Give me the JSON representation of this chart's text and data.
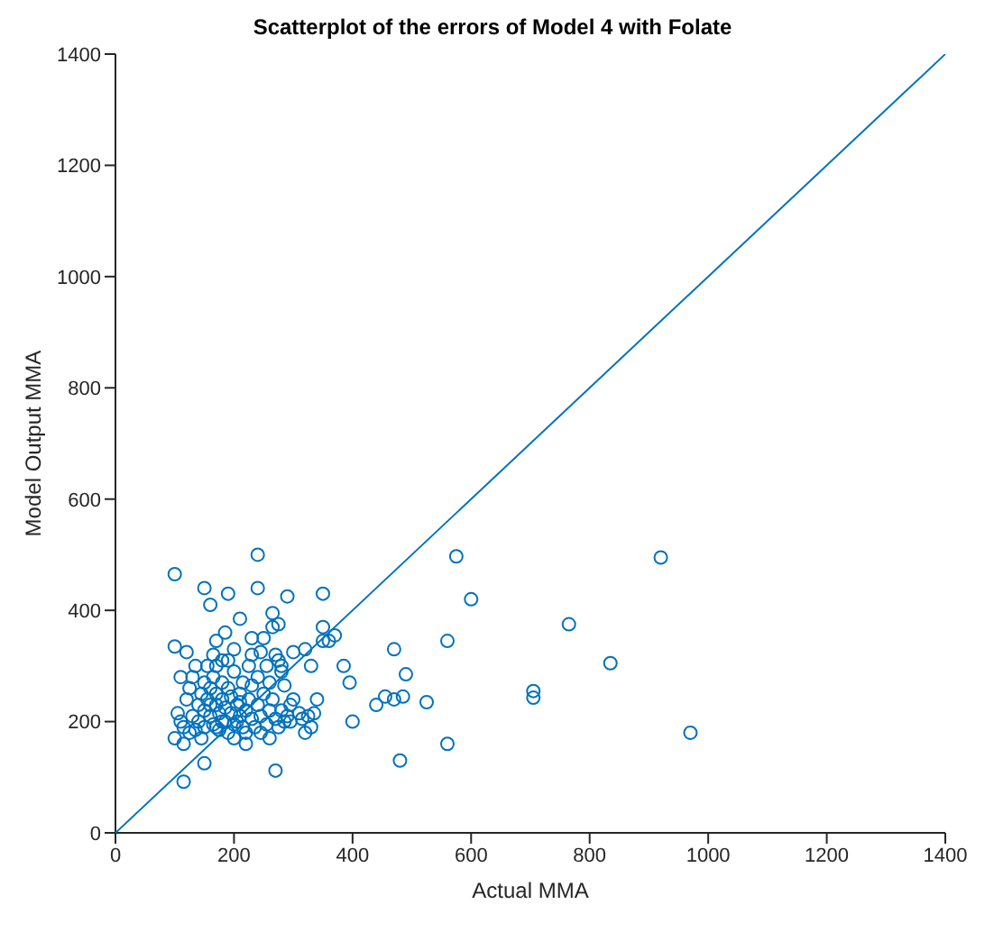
{
  "chart_data": {
    "type": "scatter",
    "title": "Scatterplot of the errors of Model 4 with Folate",
    "xlabel": "Actual MMA",
    "ylabel": "Model Output MMA",
    "xlim": [
      0,
      1400
    ],
    "ylim": [
      0,
      1400
    ],
    "xticks": [
      0,
      200,
      400,
      600,
      800,
      1000,
      1200,
      1400
    ],
    "yticks": [
      0,
      200,
      400,
      600,
      800,
      1000,
      1200,
      1400
    ],
    "grid": false,
    "legend": false,
    "marker": "circle",
    "series": [
      {
        "color": "#0072bd",
        "x": [
          100,
          240,
          575,
          920,
          600,
          765,
          835,
          560,
          705,
          705,
          470,
          490,
          525,
          560,
          480,
          970,
          270,
          115,
          150,
          385,
          395,
          400,
          440,
          455,
          470,
          485,
          350,
          290,
          265,
          240,
          150,
          160,
          190,
          100,
          120,
          185,
          230,
          265,
          350,
          320,
          330,
          370,
          350,
          360,
          275,
          210,
          105,
          110,
          115,
          120,
          125,
          130,
          130,
          135,
          140,
          140,
          145,
          150,
          150,
          150,
          155,
          155,
          160,
          160,
          165,
          165,
          165,
          170,
          170,
          170,
          175,
          175,
          180,
          180,
          180,
          185,
          185,
          190,
          190,
          195,
          195,
          200,
          200,
          205,
          205,
          210,
          210,
          215,
          215,
          220,
          220,
          225,
          225,
          230,
          230,
          235,
          240,
          240,
          245,
          245,
          250,
          255,
          255,
          260,
          260,
          265,
          270,
          270,
          275,
          280,
          280,
          285,
          290,
          295,
          300,
          300,
          310,
          315,
          320,
          325,
          330,
          335,
          340,
          100,
          110,
          115,
          125,
          135,
          145,
          160,
          170,
          180,
          190,
          200,
          210,
          220,
          230,
          245,
          260,
          275,
          285,
          295,
          170,
          200,
          250,
          280
        ],
        "values": [
          465,
          500,
          497,
          495,
          420,
          375,
          305,
          345,
          255,
          243,
          330,
          285,
          235,
          160,
          130,
          180,
          112,
          92,
          125,
          300,
          270,
          200,
          230,
          245,
          240,
          245,
          430,
          425,
          395,
          440,
          440,
          410,
          430,
          335,
          325,
          360,
          350,
          370,
          370,
          330,
          300,
          355,
          345,
          345,
          375,
          385,
          215,
          200,
          190,
          240,
          260,
          280,
          210,
          185,
          230,
          200,
          250,
          270,
          220,
          190,
          240,
          300,
          210,
          260,
          280,
          195,
          320,
          230,
          250,
          300,
          215,
          185,
          270,
          240,
          310,
          200,
          225,
          260,
          180,
          215,
          245,
          290,
          170,
          230,
          200,
          250,
          210,
          190,
          270,
          220,
          180,
          240,
          300,
          205,
          265,
          190,
          230,
          280,
          210,
          325,
          250,
          195,
          300,
          220,
          270,
          240,
          205,
          320,
          190,
          300,
          220,
          265,
          210,
          200,
          240,
          325,
          215,
          205,
          180,
          210,
          190,
          215,
          240,
          170,
          280,
          160,
          180,
          300,
          170,
          230,
          190,
          200,
          310,
          195,
          235,
          160,
          320,
          180,
          170,
          310,
          200,
          230,
          345,
          330,
          350,
          290
        ]
      },
      {
        "type": "line",
        "marker": "none",
        "color": "#0072bd",
        "x": [
          0,
          1400
        ],
        "values": [
          0,
          1400
        ]
      }
    ]
  }
}
